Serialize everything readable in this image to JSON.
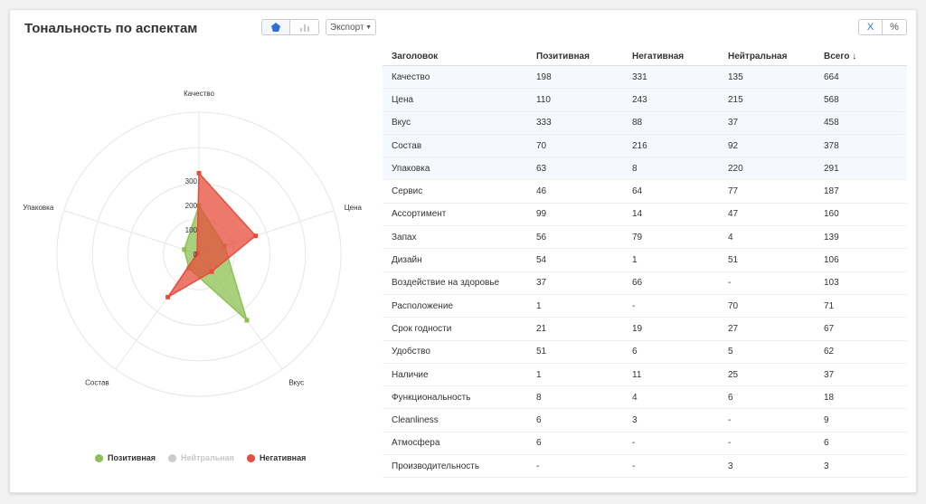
{
  "header": {
    "title": "Тональность по аспектам",
    "export_label": "Экспорт",
    "toggle_x": "X",
    "toggle_pct": "%"
  },
  "colors": {
    "positive": "#8cc152",
    "neutral": "#cccccc",
    "negative": "#e74c3c",
    "accent": "#2d6fd3"
  },
  "legend": [
    {
      "label": "Позитивная",
      "color": "#8cc152",
      "active": true
    },
    {
      "label": "Нейтральная",
      "color": "#cccccc",
      "active": false
    },
    {
      "label": "Негативная",
      "color": "#e74c3c",
      "active": true
    }
  ],
  "chart_data": {
    "type": "radar",
    "categories": [
      "Качество",
      "Цена",
      "Вкус",
      "Состав",
      "Упаковка"
    ],
    "radial_ticks": [
      0,
      100,
      200,
      300
    ],
    "rmax": 580,
    "series": [
      {
        "name": "Позитивная",
        "values": [
          198,
          110,
          333,
          70,
          63
        ],
        "color": "#8cc152"
      },
      {
        "name": "Негативная",
        "values": [
          331,
          243,
          88,
          216,
          8
        ],
        "color": "#e74c3c"
      }
    ]
  },
  "table": {
    "headers": [
      "Заголовок",
      "Позитивная",
      "Негативная",
      "Нейтральная",
      "Всего ↓"
    ],
    "rows": [
      [
        "Качество",
        "198",
        "331",
        "135",
        "664"
      ],
      [
        "Цена",
        "110",
        "243",
        "215",
        "568"
      ],
      [
        "Вкус",
        "333",
        "88",
        "37",
        "458"
      ],
      [
        "Состав",
        "70",
        "216",
        "92",
        "378"
      ],
      [
        "Упаковка",
        "63",
        "8",
        "220",
        "291"
      ],
      [
        "Сервис",
        "46",
        "64",
        "77",
        "187"
      ],
      [
        "Ассортимент",
        "99",
        "14",
        "47",
        "160"
      ],
      [
        "Запах",
        "56",
        "79",
        "4",
        "139"
      ],
      [
        "Дизайн",
        "54",
        "1",
        "51",
        "106"
      ],
      [
        "Воздействие на здоровье",
        "37",
        "66",
        "-",
        "103"
      ],
      [
        "Расположение",
        "1",
        "-",
        "70",
        "71"
      ],
      [
        "Срок годности",
        "21",
        "19",
        "27",
        "67"
      ],
      [
        "Удобство",
        "51",
        "6",
        "5",
        "62"
      ],
      [
        "Наличие",
        "1",
        "11",
        "25",
        "37"
      ],
      [
        "Функциональность",
        "8",
        "4",
        "6",
        "18"
      ],
      [
        "Cleanliness",
        "6",
        "3",
        "-",
        "9"
      ],
      [
        "Атмосфера",
        "6",
        "-",
        "-",
        "6"
      ],
      [
        "Производительность",
        "-",
        "-",
        "3",
        "3"
      ]
    ]
  }
}
